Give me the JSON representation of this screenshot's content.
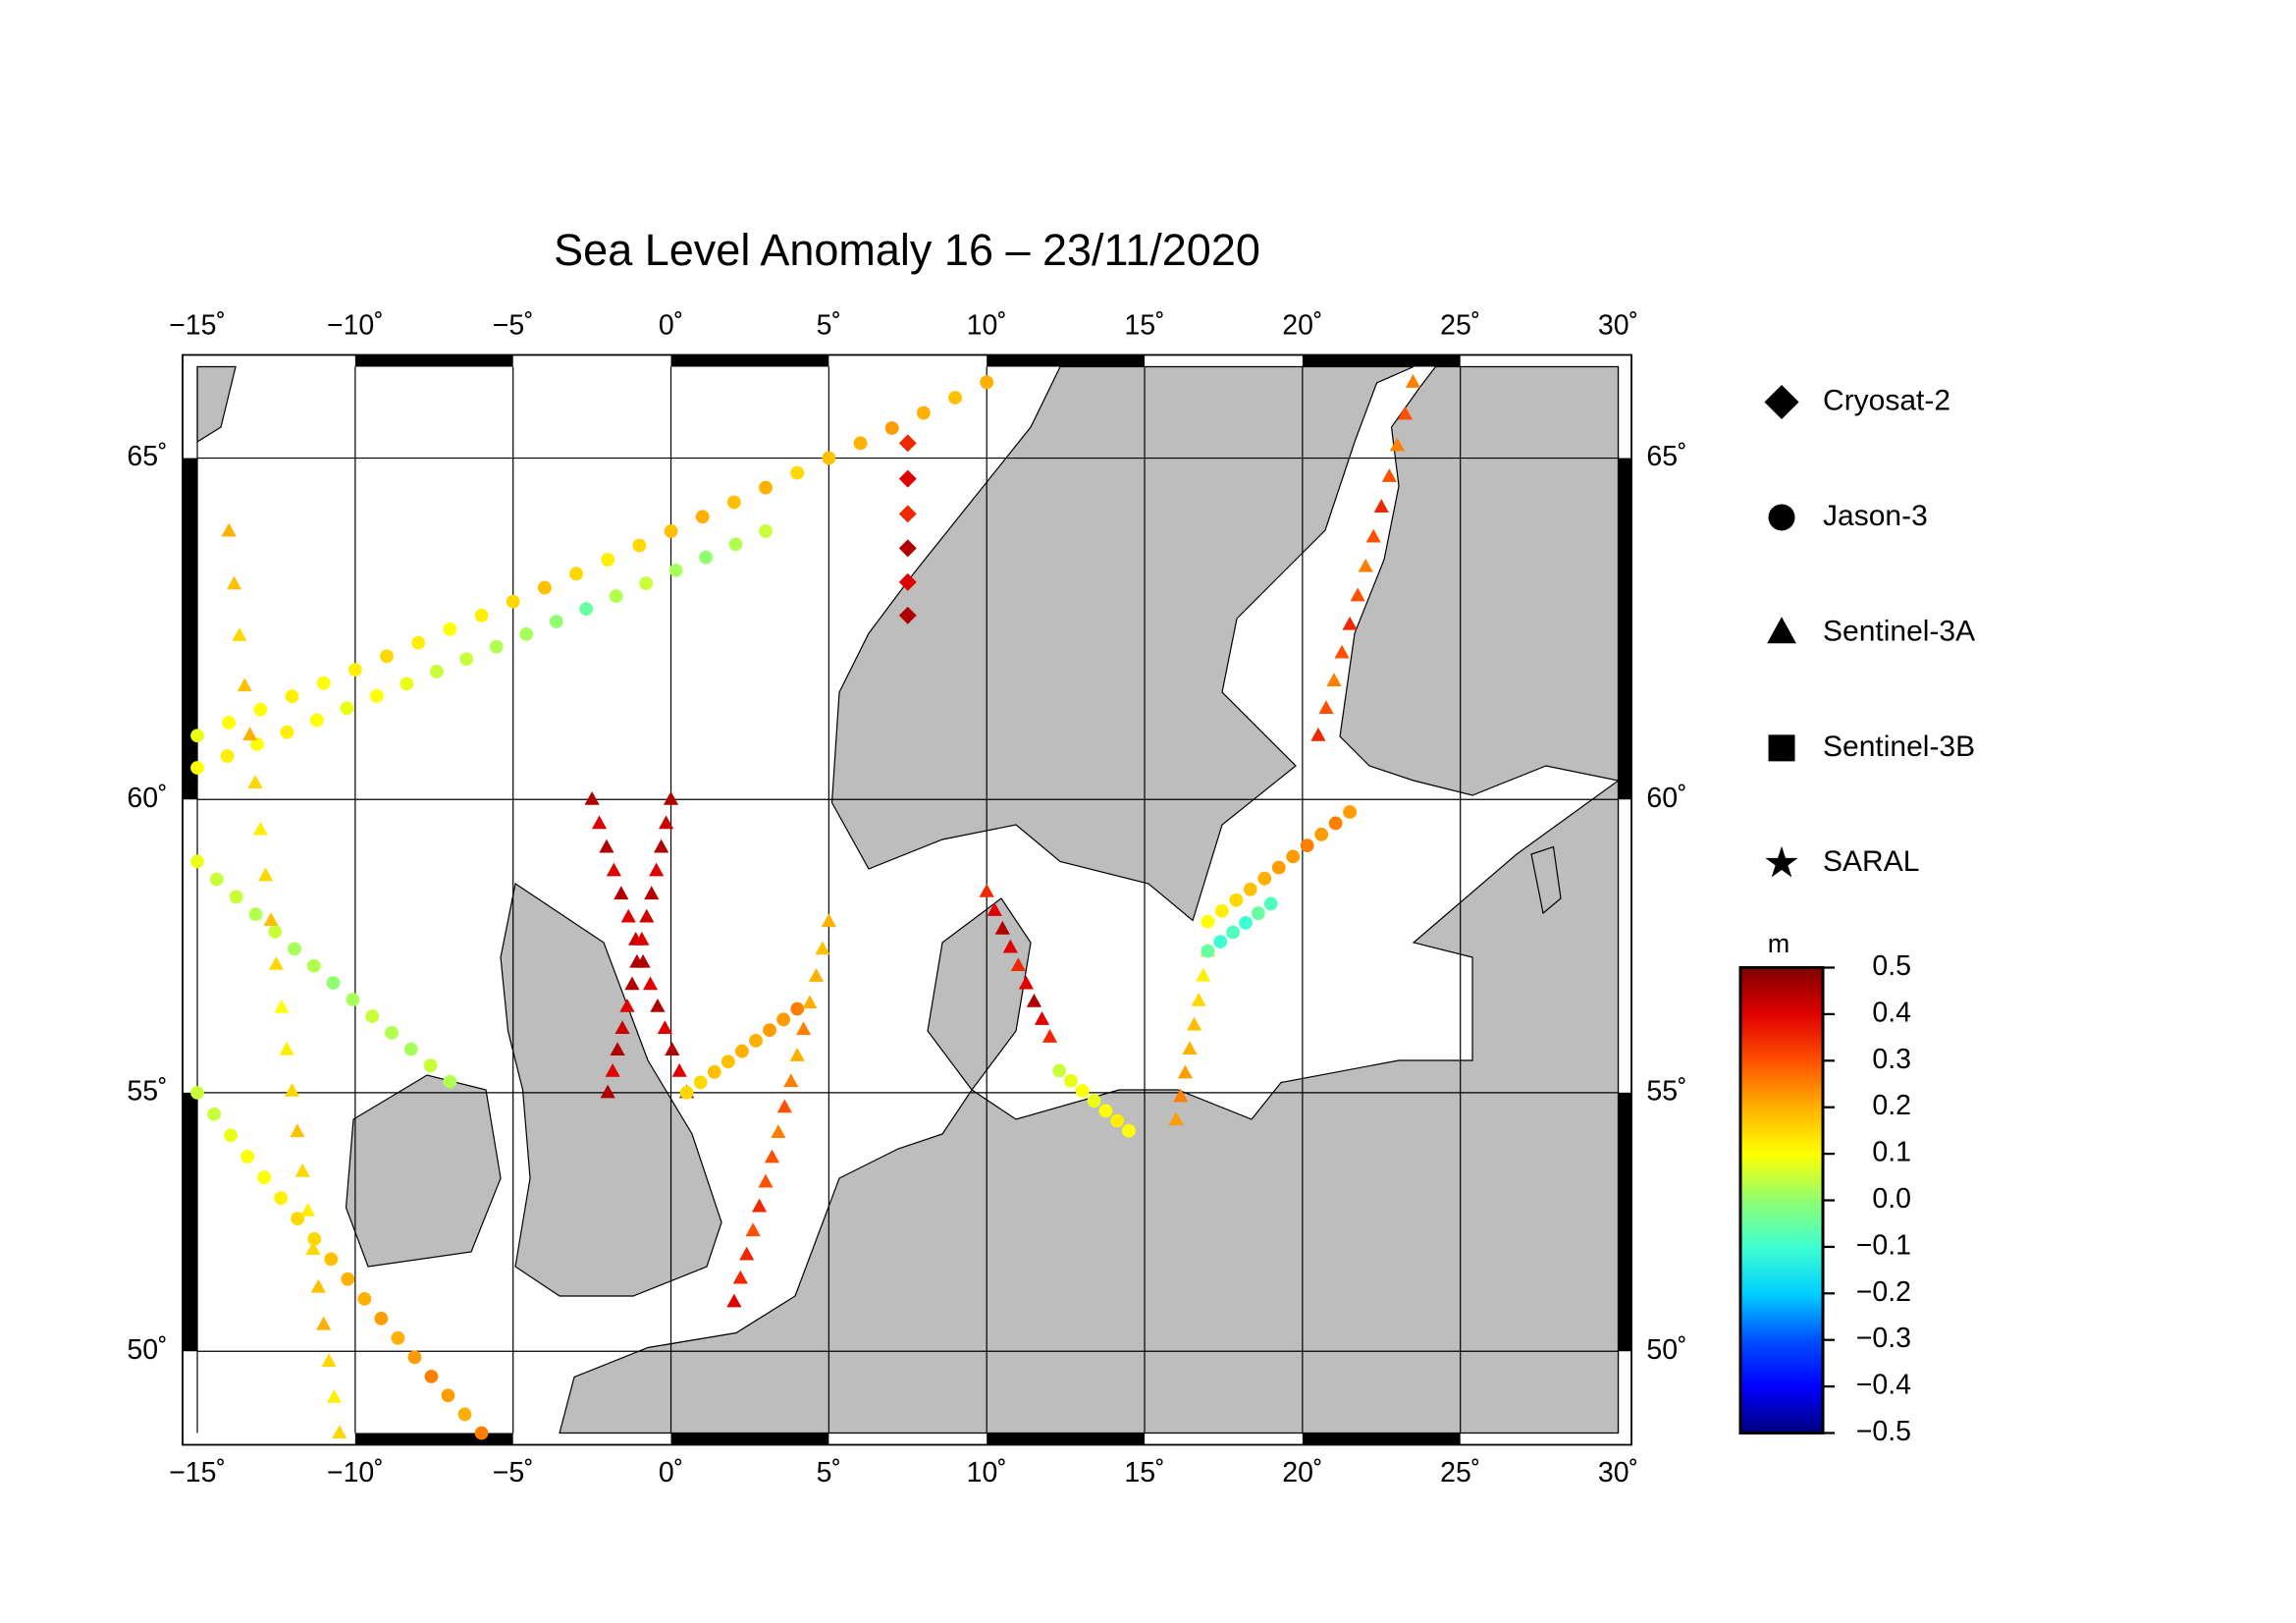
{
  "title": "Sea Level Anomaly 16 – 23/11/2020",
  "map": {
    "lonlim": [
      -15,
      30
    ],
    "latlim": [
      48.3,
      66.2
    ],
    "lonticks": [
      {
        "value": -15,
        "label": "−15˚"
      },
      {
        "value": -10,
        "label": "−10˚"
      },
      {
        "value": -5,
        "label": "−5˚"
      },
      {
        "value": 0,
        "label": "0˚"
      },
      {
        "value": 5,
        "label": "5˚"
      },
      {
        "value": 10,
        "label": "10˚"
      },
      {
        "value": 15,
        "label": "15˚"
      },
      {
        "value": 20,
        "label": "20˚"
      },
      {
        "value": 25,
        "label": "25˚"
      },
      {
        "value": 30,
        "label": "30˚"
      }
    ],
    "latticks": [
      {
        "value": 50,
        "label": "50˚"
      },
      {
        "value": 55,
        "label": "55˚"
      },
      {
        "value": 60,
        "label": "60˚"
      },
      {
        "value": 65,
        "label": "65˚"
      }
    ],
    "grid": true
  },
  "legend": [
    "Cryosat-2",
    "Jason-3",
    "Sentinel-3A",
    "Sentinel-3B",
    "SARAL"
  ],
  "colorbar": {
    "unit": "m",
    "clim": [
      -0.5,
      0.5
    ],
    "colors": [
      "#00007f",
      "#0000ff",
      "#0050ff",
      "#00d0ff",
      "#40ffd0",
      "#90ff70",
      "#ffff00",
      "#ffb000",
      "#ff5000",
      "#e00000",
      "#800000"
    ],
    "ticks": [
      0.5,
      0.4,
      0.3,
      0.2,
      0.1,
      {
        "value": 0,
        "label": "0.0"
      },
      {
        "value": -0.1,
        "label": "−0.1"
      },
      {
        "value": -0.2,
        "label": "−0.2"
      },
      {
        "value": -0.3,
        "label": "−0.3"
      },
      {
        "value": -0.4,
        "label": "−0.4"
      },
      {
        "value": -0.5,
        "label": "−0.5"
      }
    ]
  },
  "tracks": [
    {
      "satellite": 2,
      "start": [
        -2.5,
        60
      ],
      "end": [
        0.5,
        55
      ],
      "values": [
        0.45,
        0.4,
        0.45,
        0.4,
        0.45,
        0.4,
        0.42,
        0.45,
        0.4,
        0.45,
        0.4,
        0.45,
        0.4,
        0.45
      ]
    },
    {
      "satellite": 2,
      "start": [
        0,
        60
      ],
      "end": [
        -2,
        55
      ],
      "values": [
        0.45,
        0.42,
        0.45,
        0.4,
        0.45,
        0.42,
        0.4,
        0.45,
        0.45,
        0.4,
        0.42,
        0.45,
        0.4,
        0.45
      ]
    },
    {
      "satellite": 1,
      "start": [
        -15,
        61
      ],
      "end": [
        10,
        66
      ],
      "values": [
        0.08,
        0.1,
        0.1,
        0.12,
        0.1,
        0.12,
        0.15,
        0.12,
        0.1,
        0.12,
        0.15,
        0.18,
        0.15,
        0.12,
        0.15,
        0.18,
        0.2,
        0.18,
        0.2,
        0.15,
        0.18,
        0.2,
        0.22,
        0.2,
        0.18,
        0.2
      ]
    },
    {
      "satellite": 1,
      "start": [
        -15,
        55
      ],
      "end": [
        -6,
        48.3
      ],
      "values": [
        0.05,
        0.05,
        0.08,
        0.1,
        0.1,
        0.12,
        0.15,
        0.15,
        0.18,
        0.2,
        0.2,
        0.22,
        0.2,
        0.22,
        0.25,
        0.22,
        0.2,
        0.25
      ]
    },
    {
      "satellite": 1,
      "start": [
        0.5,
        55
      ],
      "end": [
        4,
        56.5
      ],
      "values": [
        0.15,
        0.15,
        0.18,
        0.18,
        0.2,
        0.2,
        0.22,
        0.22,
        0.25
      ]
    },
    {
      "satellite": 1,
      "start": [
        17,
        58
      ],
      "end": [
        21.5,
        59.8
      ],
      "values": [
        0.1,
        0.12,
        0.15,
        0.18,
        0.2,
        0.22,
        0.22,
        0.25,
        0.22,
        0.25,
        0.22
      ]
    },
    {
      "satellite": 2,
      "start": [
        2,
        51
      ],
      "end": [
        5,
        58
      ],
      "values": [
        0.4,
        0.35,
        0.35,
        0.3,
        0.35,
        0.3,
        0.3,
        0.25,
        0.3,
        0.25,
        0.2,
        0.25,
        0.2,
        0.2,
        0.18,
        0.2
      ]
    },
    {
      "satellite": 2,
      "start": [
        10,
        58.5
      ],
      "end": [
        12,
        56
      ],
      "values": [
        0.35,
        0.4,
        0.45,
        0.4,
        0.35,
        0.4,
        0.45,
        0.4,
        0.35
      ]
    },
    {
      "satellite": 2,
      "start": [
        23.5,
        66
      ],
      "end": [
        20.5,
        61
      ],
      "values": [
        0.25,
        0.3,
        0.25,
        0.3,
        0.35,
        0.3,
        0.25,
        0.3,
        0.35,
        0.3,
        0.25,
        0.3,
        0.35
      ]
    },
    {
      "satellite": 1,
      "start": [
        -15,
        59
      ],
      "end": [
        -7,
        55.2
      ],
      "values": [
        0.08,
        0.05,
        0.05,
        0.03,
        0.05,
        0.02,
        0.03,
        0.0,
        0.02,
        0.05,
        0.03,
        0.02,
        0.05,
        0.03
      ]
    },
    {
      "satellite": 1,
      "start": [
        3,
        64
      ],
      "end": [
        -15,
        60.5
      ],
      "values": [
        0.05,
        0.03,
        0.0,
        0.02,
        0.05,
        0.03,
        -0.05,
        0.0,
        0.02,
        0.03,
        0.05,
        0.05,
        0.08,
        0.1,
        0.08,
        0.1,
        0.12,
        0.1,
        0.12,
        0.1
      ]
    },
    {
      "satellite": 2,
      "start": [
        -14,
        64
      ],
      "end": [
        -10.5,
        48.3
      ],
      "values": [
        0.2,
        0.18,
        0.15,
        0.18,
        0.2,
        0.15,
        0.12,
        0.15,
        0.18,
        0.15,
        0.1,
        0.12,
        0.15,
        0.18,
        0.15,
        0.12,
        0.15,
        0.18,
        0.2,
        0.15,
        0.12,
        0.15
      ]
    },
    {
      "satellite": 0,
      "start": [
        7.5,
        65.2
      ],
      "end": [
        7.5,
        62.8
      ],
      "values": [
        0.35,
        0.4,
        0.35,
        0.45,
        0.4,
        0.45
      ]
    },
    {
      "satellite": 1,
      "start": [
        12.3,
        55.4
      ],
      "end": [
        14.5,
        54.3
      ],
      "values": [
        0.05,
        0.08,
        0.1,
        0.08,
        0.1,
        0.12,
        0.1
      ]
    },
    {
      "satellite": 2,
      "start": [
        17,
        57.5
      ],
      "end": [
        16,
        54.5
      ],
      "values": [
        0.15,
        0.12,
        0.15,
        0.18,
        0.2,
        0.22,
        0.25,
        0.22
      ]
    },
    {
      "satellite": 1,
      "start": [
        17,
        57.5
      ],
      "end": [
        19,
        58.3
      ],
      "values": [
        -0.05,
        -0.1,
        -0.08,
        -0.1,
        -0.05,
        -0.08
      ]
    }
  ]
}
